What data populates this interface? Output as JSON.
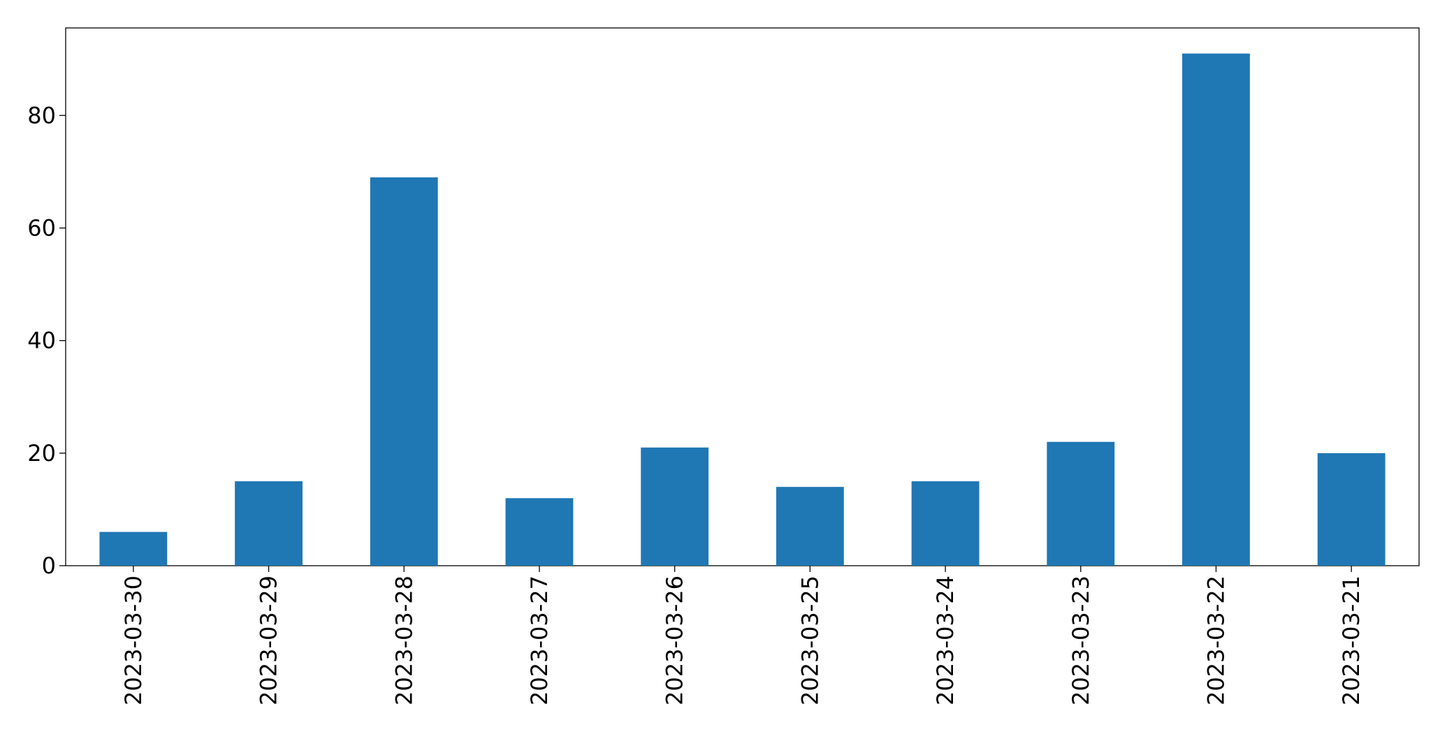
{
  "chart_data": {
    "type": "bar",
    "categories": [
      "2023-03-30",
      "2023-03-29",
      "2023-03-28",
      "2023-03-27",
      "2023-03-26",
      "2023-03-25",
      "2023-03-24",
      "2023-03-23",
      "2023-03-22",
      "2023-03-21"
    ],
    "values": [
      6,
      15,
      69,
      12,
      21,
      14,
      15,
      22,
      91,
      20
    ],
    "color": "#1f77b4",
    "ylim": [
      0,
      95.55
    ],
    "yticks": [
      0,
      20,
      40,
      60,
      80
    ],
    "grid": false
  }
}
